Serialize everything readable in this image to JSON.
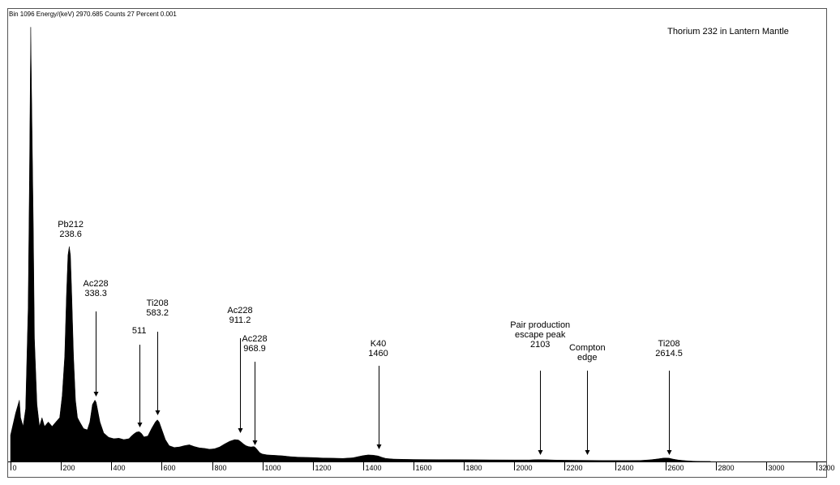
{
  "status_bar": {
    "text": "Bin 1096  Energy/(keV) 2970.685  Counts 27  Percent 0.001"
  },
  "chart_data": {
    "type": "area",
    "title": "Thorium 232 in Lantern Mantle",
    "xlabel": "",
    "ylabel": "",
    "xlim": [
      0,
      3200
    ],
    "ylim": [
      0,
      1
    ],
    "grid": false,
    "x_ticks": [
      0,
      200,
      400,
      600,
      800,
      1000,
      1200,
      1400,
      1600,
      1800,
      2000,
      2200,
      2400,
      2600,
      2800,
      3000,
      3200
    ],
    "spectrum": {
      "x": [
        0,
        20,
        35,
        40,
        50,
        60,
        70,
        75,
        80,
        90,
        95,
        105,
        115,
        125,
        135,
        150,
        165,
        180,
        195,
        205,
        215,
        222,
        228,
        233,
        238,
        243,
        250,
        258,
        266,
        275,
        290,
        305,
        315,
        325,
        335,
        340,
        345,
        355,
        370,
        390,
        410,
        430,
        450,
        470,
        480,
        490,
        500,
        511,
        520,
        530,
        545,
        560,
        575,
        583,
        590,
        600,
        615,
        630,
        650,
        670,
        690,
        710,
        730,
        750,
        770,
        790,
        810,
        830,
        850,
        870,
        890,
        905,
        915,
        925,
        935,
        945,
        955,
        965,
        970,
        975,
        990,
        1000,
        1020,
        1050,
        1080,
        1110,
        1140,
        1170,
        1200,
        1240,
        1280,
        1320,
        1360,
        1380,
        1400,
        1420,
        1440,
        1460,
        1475,
        1490,
        1520,
        1560,
        1600,
        1650,
        1700,
        1750,
        1800,
        1900,
        2000,
        2060,
        2080,
        2100,
        2110,
        2130,
        2160,
        2200,
        2250,
        2300,
        2350,
        2400,
        2450,
        2500,
        2540,
        2570,
        2590,
        2600,
        2615,
        2630,
        2650,
        2680,
        2710,
        2740,
        2780
      ],
      "y": [
        0.06,
        0.11,
        0.14,
        0.1,
        0.08,
        0.12,
        0.35,
        0.64,
        0.99,
        0.55,
        0.28,
        0.13,
        0.08,
        0.1,
        0.08,
        0.09,
        0.08,
        0.09,
        0.1,
        0.15,
        0.24,
        0.38,
        0.47,
        0.49,
        0.47,
        0.38,
        0.24,
        0.14,
        0.1,
        0.09,
        0.075,
        0.072,
        0.09,
        0.13,
        0.14,
        0.135,
        0.12,
        0.09,
        0.065,
        0.055,
        0.052,
        0.053,
        0.05,
        0.052,
        0.058,
        0.063,
        0.067,
        0.068,
        0.064,
        0.056,
        0.058,
        0.075,
        0.09,
        0.095,
        0.09,
        0.074,
        0.05,
        0.036,
        0.032,
        0.033,
        0.036,
        0.038,
        0.034,
        0.031,
        0.03,
        0.028,
        0.029,
        0.033,
        0.04,
        0.046,
        0.05,
        0.049,
        0.045,
        0.04,
        0.036,
        0.034,
        0.033,
        0.034,
        0.033,
        0.03,
        0.02,
        0.017,
        0.015,
        0.014,
        0.013,
        0.011,
        0.01,
        0.0095,
        0.009,
        0.008,
        0.0075,
        0.007,
        0.0085,
        0.011,
        0.0135,
        0.015,
        0.0145,
        0.0125,
        0.0095,
        0.007,
        0.0055,
        0.005,
        0.0047,
        0.0045,
        0.0043,
        0.0042,
        0.004,
        0.0037,
        0.0035,
        0.0036,
        0.004,
        0.0042,
        0.0041,
        0.0038,
        0.0033,
        0.003,
        0.0027,
        0.0025,
        0.0023,
        0.0022,
        0.0022,
        0.0024,
        0.0038,
        0.006,
        0.0075,
        0.008,
        0.0075,
        0.0055,
        0.0035,
        0.0018,
        0.0008,
        0.0002,
        0
      ]
    },
    "annotations": [
      {
        "lines": [
          "Pb212",
          "238.6"
        ],
        "x": 238.6,
        "arrow": false
      },
      {
        "lines": [
          "Ac228",
          "338.3"
        ],
        "x": 338.3,
        "arrow": true
      },
      {
        "lines": [
          "511"
        ],
        "x": 511,
        "arrow": true
      },
      {
        "lines": [
          "Ti208",
          "583.2"
        ],
        "x": 583.2,
        "arrow": true
      },
      {
        "lines": [
          "Ac228",
          "911.2"
        ],
        "x": 911.2,
        "arrow": true
      },
      {
        "lines": [
          "Ac228",
          "968.9"
        ],
        "x": 968.9,
        "arrow": true
      },
      {
        "lines": [
          "K40",
          "1460"
        ],
        "x": 1460,
        "arrow": true
      },
      {
        "lines": [
          "Pair production",
          "escape peak",
          "2103"
        ],
        "x": 2103,
        "arrow": true
      },
      {
        "lines": [
          "Compton",
          "edge"
        ],
        "x": 2290,
        "arrow": true
      },
      {
        "lines": [
          "Ti208",
          "2614.5"
        ],
        "x": 2614.5,
        "arrow": true
      }
    ]
  }
}
